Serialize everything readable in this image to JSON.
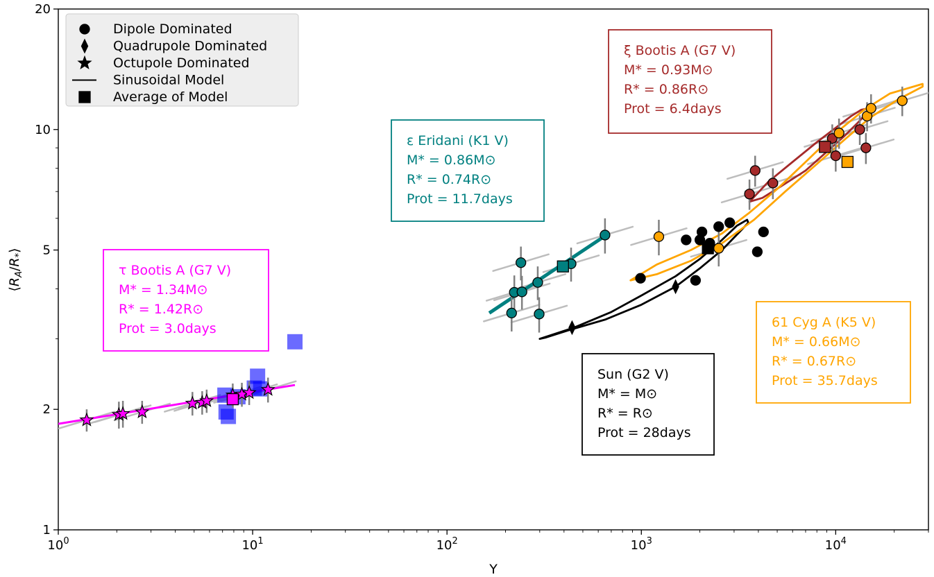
{
  "chart_data": {
    "type": "scatter",
    "x_scale": "log",
    "y_scale": "log",
    "xlim": [
      1,
      30000
    ],
    "ylim": [
      1,
      20
    ],
    "xlabel": "Y",
    "ylabel": "⟨R_A/R_*⟩",
    "x_ticks": [
      {
        "value": 1,
        "base": "10",
        "exp": "0"
      },
      {
        "value": 10,
        "base": "10",
        "exp": "1"
      },
      {
        "value": 100,
        "base": "10",
        "exp": "2"
      },
      {
        "value": 1000,
        "base": "10",
        "exp": "3"
      },
      {
        "value": 10000,
        "base": "10",
        "exp": "4"
      }
    ],
    "y_ticks": [
      {
        "value": 1,
        "label": "1"
      },
      {
        "value": 2,
        "label": "2"
      },
      {
        "value": 5,
        "label": "5"
      },
      {
        "value": 10,
        "label": "10"
      },
      {
        "value": 20,
        "label": "20"
      }
    ],
    "legend": {
      "position": "top-left",
      "entries": [
        {
          "marker": "circle",
          "label": "Dipole Dominated"
        },
        {
          "marker": "diamond",
          "label": "Quadrupole Dominated"
        },
        {
          "marker": "star",
          "label": "Octupole Dominated"
        },
        {
          "marker": "line",
          "label": "Sinusoidal Model"
        },
        {
          "marker": "square",
          "label": "Average of Model"
        }
      ]
    },
    "stars": [
      {
        "name": "tau_boo",
        "color": "#ff00ff",
        "box_lines": [
          "τ Bootis A (G7 V)",
          "M* = 1.34M⊙",
          "R* = 1.42R⊙",
          "Prot = 3.0days"
        ],
        "model_line": [
          [
            1,
            1.84
          ],
          [
            16.5,
            2.3
          ]
        ],
        "model_ellipse": null,
        "points": [
          {
            "x": 1.4,
            "y": 1.88,
            "marker": "star",
            "err": 0.12
          },
          {
            "x": 2.05,
            "y": 1.94,
            "marker": "star",
            "err": 0.15
          },
          {
            "x": 2.15,
            "y": 1.95,
            "marker": "star",
            "err": 0.15
          },
          {
            "x": 2.7,
            "y": 1.97,
            "marker": "star",
            "err": 0.13
          },
          {
            "x": 4.9,
            "y": 2.07,
            "marker": "star",
            "err": 0.14
          },
          {
            "x": 5.5,
            "y": 2.08,
            "marker": "star",
            "err": 0.14
          },
          {
            "x": 5.8,
            "y": 2.1,
            "marker": "star",
            "err": 0.14
          },
          {
            "x": 7.9,
            "y": 2.17,
            "marker": "star",
            "err": 0.15
          },
          {
            "x": 8.8,
            "y": 2.18,
            "marker": "star",
            "err": 0.15
          },
          {
            "x": 9.6,
            "y": 2.2,
            "marker": "star",
            "err": 0.15
          },
          {
            "x": 12.0,
            "y": 2.24,
            "marker": "star",
            "err": 0.16
          }
        ],
        "average": {
          "x": 7.9,
          "y": 2.12
        },
        "comparison_points": [
          {
            "x": 7.3,
            "y": 1.97
          },
          {
            "x": 7.5,
            "y": 1.92
          },
          {
            "x": 7.2,
            "y": 2.17
          },
          {
            "x": 8.4,
            "y": 2.15
          },
          {
            "x": 10.2,
            "y": 2.26
          },
          {
            "x": 10.6,
            "y": 2.42
          },
          {
            "x": 11.0,
            "y": 2.25
          },
          {
            "x": 16.5,
            "y": 2.95
          }
        ]
      },
      {
        "name": "eps_eri",
        "color": "#008080",
        "box_lines": [
          "ε Eridani (K1 V)",
          "M* = 0.86M⊙",
          "R* = 0.74R⊙",
          "Prot = 11.7days"
        ],
        "model_line": [
          [
            165,
            3.48
          ],
          [
            660,
            5.45
          ]
        ],
        "model_ellipse": null,
        "points": [
          {
            "x": 215,
            "y": 3.48,
            "marker": "circle",
            "err": 0.35
          },
          {
            "x": 222,
            "y": 3.92,
            "marker": "circle",
            "err": 0.4
          },
          {
            "x": 240,
            "y": 4.65,
            "marker": "circle",
            "err": 0.45
          },
          {
            "x": 243,
            "y": 3.93,
            "marker": "circle",
            "err": 0.38
          },
          {
            "x": 293,
            "y": 4.15,
            "marker": "circle",
            "err": 0.4
          },
          {
            "x": 298,
            "y": 3.46,
            "marker": "circle",
            "err": 0.35
          },
          {
            "x": 435,
            "y": 4.62,
            "marker": "circle",
            "err": 0.45
          },
          {
            "x": 650,
            "y": 5.45,
            "marker": "circle",
            "err": 0.55
          }
        ],
        "average": {
          "x": 395,
          "y": 4.55
        }
      },
      {
        "name": "sun",
        "color": "#000000",
        "box_lines": [
          "Sun (G2 V)",
          "M* = M⊙",
          "R* = R⊙",
          "Prot = 28days"
        ],
        "model_line": null,
        "model_ellipse": [
          [
            300,
            3.0
          ],
          [
            450,
            3.2
          ],
          [
            700,
            3.5
          ],
          [
            1000,
            3.85
          ],
          [
            1500,
            4.3
          ],
          [
            2000,
            4.75
          ],
          [
            2600,
            5.3
          ],
          [
            3100,
            5.75
          ],
          [
            3500,
            5.95
          ],
          [
            3550,
            5.85
          ],
          [
            3200,
            5.55
          ],
          [
            2600,
            5.0
          ],
          [
            2000,
            4.5
          ],
          [
            1500,
            4.05
          ],
          [
            1000,
            3.65
          ],
          [
            650,
            3.35
          ],
          [
            420,
            3.15
          ],
          [
            320,
            3.02
          ],
          [
            300,
            3.0
          ]
        ],
        "points": [
          {
            "x": 990,
            "y": 4.25,
            "marker": "circle",
            "err": 0
          },
          {
            "x": 1700,
            "y": 5.3,
            "marker": "circle",
            "err": 0
          },
          {
            "x": 1900,
            "y": 4.2,
            "marker": "circle",
            "err": 0
          },
          {
            "x": 2000,
            "y": 5.3,
            "marker": "circle",
            "err": 0
          },
          {
            "x": 2050,
            "y": 5.55,
            "marker": "circle",
            "err": 0
          },
          {
            "x": 2250,
            "y": 5.2,
            "marker": "circle",
            "err": 0
          },
          {
            "x": 2500,
            "y": 5.72,
            "marker": "circle",
            "err": 0
          },
          {
            "x": 2850,
            "y": 5.85,
            "marker": "circle",
            "err": 0
          },
          {
            "x": 3950,
            "y": 4.95,
            "marker": "circle",
            "err": 0
          },
          {
            "x": 4250,
            "y": 5.55,
            "marker": "circle",
            "err": 0
          },
          {
            "x": 440,
            "y": 3.2,
            "marker": "diamond",
            "err": 0
          },
          {
            "x": 1500,
            "y": 4.05,
            "marker": "diamond",
            "err": 0
          }
        ],
        "average": {
          "x": 2200,
          "y": 5.05
        }
      },
      {
        "name": "xi_boo",
        "color": "#a52a2a",
        "box_lines": [
          "ξ Bootis A (G7 V)",
          "M* = 0.93M⊙",
          "R* = 0.86R⊙",
          "Prot = 6.4days"
        ],
        "model_line": null,
        "model_ellipse": [
          [
            3600,
            6.6
          ],
          [
            4500,
            7.4
          ],
          [
            6000,
            8.3
          ],
          [
            8000,
            9.3
          ],
          [
            10000,
            10.1
          ],
          [
            12000,
            10.8
          ],
          [
            13500,
            11.2
          ],
          [
            14800,
            11.3
          ],
          [
            14500,
            11.0
          ],
          [
            13000,
            10.4
          ],
          [
            11000,
            9.6
          ],
          [
            9000,
            8.8
          ],
          [
            7000,
            7.9
          ],
          [
            5200,
            7.2
          ],
          [
            4200,
            6.75
          ],
          [
            3600,
            6.6
          ]
        ],
        "points": [
          {
            "x": 3600,
            "y": 6.9,
            "marker": "circle",
            "err": 0.6
          },
          {
            "x": 3850,
            "y": 7.9,
            "marker": "circle",
            "err": 0.7
          },
          {
            "x": 4750,
            "y": 7.35,
            "marker": "circle",
            "err": 0.65
          },
          {
            "x": 9600,
            "y": 9.5,
            "marker": "circle",
            "err": 0.8
          },
          {
            "x": 10000,
            "y": 8.6,
            "marker": "circle",
            "err": 0.75
          },
          {
            "x": 13300,
            "y": 10.0,
            "marker": "circle",
            "err": 0.85
          },
          {
            "x": 14300,
            "y": 9.0,
            "marker": "circle",
            "err": 0.8
          }
        ],
        "average": {
          "x": 8800,
          "y": 9.05
        }
      },
      {
        "name": "61_cyg",
        "color": "#ffa500",
        "box_lines": [
          "61 Cyg A (K5 V)",
          "M* = 0.66M⊙",
          "R* = 0.67R⊙",
          "Prot = 35.7days"
        ],
        "model_line": null,
        "model_ellipse": [
          [
            880,
            4.2
          ],
          [
            1200,
            4.6
          ],
          [
            1800,
            5.0
          ],
          [
            2600,
            5.5
          ],
          [
            3600,
            6.2
          ],
          [
            5000,
            7.1
          ],
          [
            7000,
            8.3
          ],
          [
            10000,
            9.8
          ],
          [
            14000,
            11.2
          ],
          [
            19000,
            12.3
          ],
          [
            28000,
            13.0
          ],
          [
            28000,
            12.8
          ],
          [
            21000,
            11.9
          ],
          [
            15000,
            10.7
          ],
          [
            11000,
            9.4
          ],
          [
            8000,
            8.2
          ],
          [
            5500,
            7.0
          ],
          [
            3800,
            5.95
          ],
          [
            2600,
            5.2
          ],
          [
            1800,
            4.7
          ],
          [
            1200,
            4.35
          ],
          [
            880,
            4.2
          ]
        ],
        "points": [
          {
            "x": 1230,
            "y": 5.4,
            "marker": "circle",
            "err": 0.55
          },
          {
            "x": 2500,
            "y": 5.05,
            "marker": "circle",
            "err": 0.5
          },
          {
            "x": 10400,
            "y": 9.8,
            "marker": "circle",
            "err": 0.85
          },
          {
            "x": 14500,
            "y": 10.8,
            "marker": "circle",
            "err": 0.9
          },
          {
            "x": 15200,
            "y": 11.3,
            "marker": "circle",
            "err": 0.95
          },
          {
            "x": 22000,
            "y": 11.8,
            "marker": "circle",
            "err": 1.0
          }
        ],
        "average": {
          "x": 11500,
          "y": 8.3
        }
      }
    ]
  }
}
